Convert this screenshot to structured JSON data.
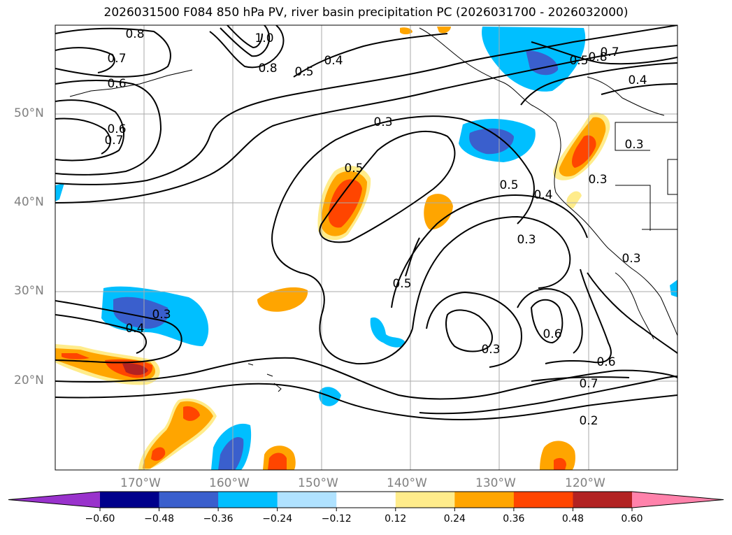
{
  "title": "2026031500 F084 850 hPa PV, river basin precipitation PC (2026031700 - 2026032000)",
  "map": {
    "lon_range": [
      -180,
      -110
    ],
    "lat_range": [
      10,
      60
    ],
    "lat_labels": [
      "50°N",
      "40°N",
      "30°N",
      "20°N"
    ],
    "lon_labels": [
      "170°W",
      "160°W",
      "150°W",
      "140°W",
      "130°W",
      "120°W"
    ],
    "contour_labels": [
      "0.8",
      "0.7",
      "0.6",
      "0.6",
      "0.7",
      "1.0",
      "0.8",
      "0.5",
      "0.4",
      "0.3",
      "0.5",
      "0.5",
      "0.4",
      "0.3",
      "0.5",
      "0.3",
      "0.3",
      "0.6",
      "0.6",
      "0.7",
      "0.2",
      "0.3",
      "0.4",
      "0.8",
      "0.7",
      "0.5",
      "0.4",
      "0.3",
      "0.3"
    ]
  },
  "colorbar": {
    "ticks": [
      "−0.60",
      "−0.48",
      "−0.36",
      "−0.24",
      "−0.12",
      "0.12",
      "0.24",
      "0.36",
      "0.48",
      "0.60"
    ],
    "colors": [
      "#9932cc",
      "#00008b",
      "#3a5fcd",
      "#00bfff",
      "#b0e2ff",
      "#ffffff",
      "#ffec8b",
      "#ffa500",
      "#ff4500",
      "#b22222",
      "#ff82ab"
    ]
  }
}
